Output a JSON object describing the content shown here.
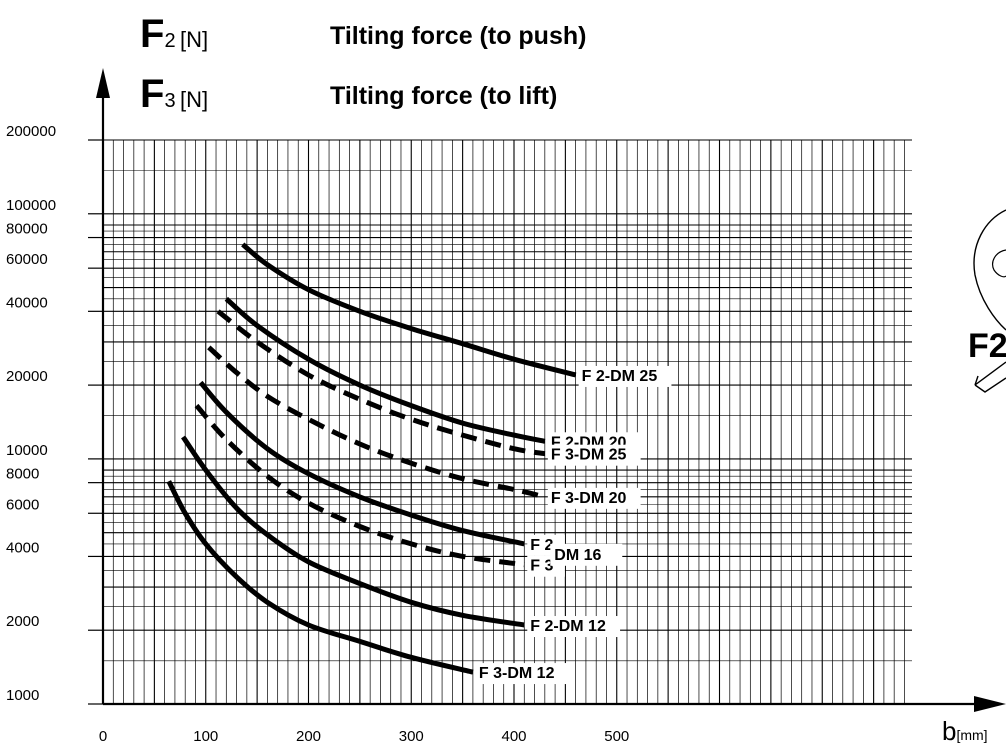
{
  "header": {
    "rows": [
      {
        "symbol": "F",
        "subscript": "2",
        "unit": "[N]",
        "description": "Tilting force (to push)"
      },
      {
        "symbol": "F",
        "subscript": "3",
        "unit": "[N]",
        "description": "Tilting force (to lift)"
      }
    ]
  },
  "axis": {
    "x_symbol": "b",
    "x_unit": "[mm]"
  },
  "side_label": "F2",
  "chart_data": {
    "type": "line",
    "title": "",
    "xlabel": "b [mm]",
    "ylabel": "F2 [N] / F3 [N]",
    "xlim": [
      0,
      560
    ],
    "ylim": [
      1000,
      200000
    ],
    "y_scale": "log",
    "grid": true,
    "x_ticks": [
      "0",
      "100",
      "200",
      "300",
      "400",
      "500"
    ],
    "y_ticks": [
      "1000",
      "2000",
      "4000",
      "6000",
      "8000",
      "10000",
      "20000",
      "40000",
      "60000",
      "80000",
      "100000",
      "200000"
    ],
    "series": [
      {
        "name": "F 2-DM 25",
        "style": "solid",
        "x": [
          136,
          160,
          200,
          250,
          300,
          350,
          400,
          460
        ],
        "y": [
          75000,
          62000,
          49000,
          40000,
          34000,
          29500,
          25500,
          22000
        ]
      },
      {
        "name": "F 2-DM 20",
        "style": "solid",
        "x": [
          120,
          150,
          200,
          250,
          300,
          350,
          400,
          430
        ],
        "y": [
          45000,
          35000,
          25500,
          20000,
          16500,
          14000,
          12500,
          11800
        ]
      },
      {
        "name": "F 3-DM 25",
        "style": "dashed",
        "x": [
          112,
          150,
          200,
          250,
          300,
          350,
          400,
          430
        ],
        "y": [
          40000,
          30000,
          22000,
          17500,
          14500,
          12500,
          11000,
          10500
        ]
      },
      {
        "name": "F 3-DM 20",
        "style": "dashed",
        "x": [
          103,
          130,
          160,
          200,
          250,
          300,
          350,
          400,
          430
        ],
        "y": [
          28500,
          22500,
          18000,
          14500,
          11500,
          9600,
          8300,
          7500,
          7000
        ]
      },
      {
        "name": "F 2",
        "style": "solid",
        "x": [
          95,
          120,
          160,
          200,
          250,
          300,
          350,
          410
        ],
        "y": [
          20500,
          15500,
          11000,
          8700,
          7000,
          5900,
          5100,
          4500
        ]
      },
      {
        "name": "F 3",
        "style": "dashed",
        "x": [
          91,
          120,
          160,
          200,
          250,
          300,
          350,
          410
        ],
        "y": [
          16500,
          12000,
          8500,
          6600,
          5300,
          4500,
          4000,
          3700
        ]
      },
      {
        "name": "F 2-DM 12",
        "style": "solid",
        "x": [
          78,
          100,
          130,
          160,
          200,
          250,
          300,
          350,
          410
        ],
        "y": [
          12300,
          9000,
          6300,
          4900,
          3800,
          3100,
          2600,
          2300,
          2100
        ]
      },
      {
        "name": "F 3-DM 12",
        "style": "solid",
        "x": [
          64,
          80,
          100,
          130,
          160,
          200,
          250,
          300,
          360
        ],
        "y": [
          8100,
          6000,
          4500,
          3300,
          2600,
          2100,
          1800,
          1550,
          1350
        ]
      }
    ],
    "annotations": [
      "DM 16"
    ]
  }
}
